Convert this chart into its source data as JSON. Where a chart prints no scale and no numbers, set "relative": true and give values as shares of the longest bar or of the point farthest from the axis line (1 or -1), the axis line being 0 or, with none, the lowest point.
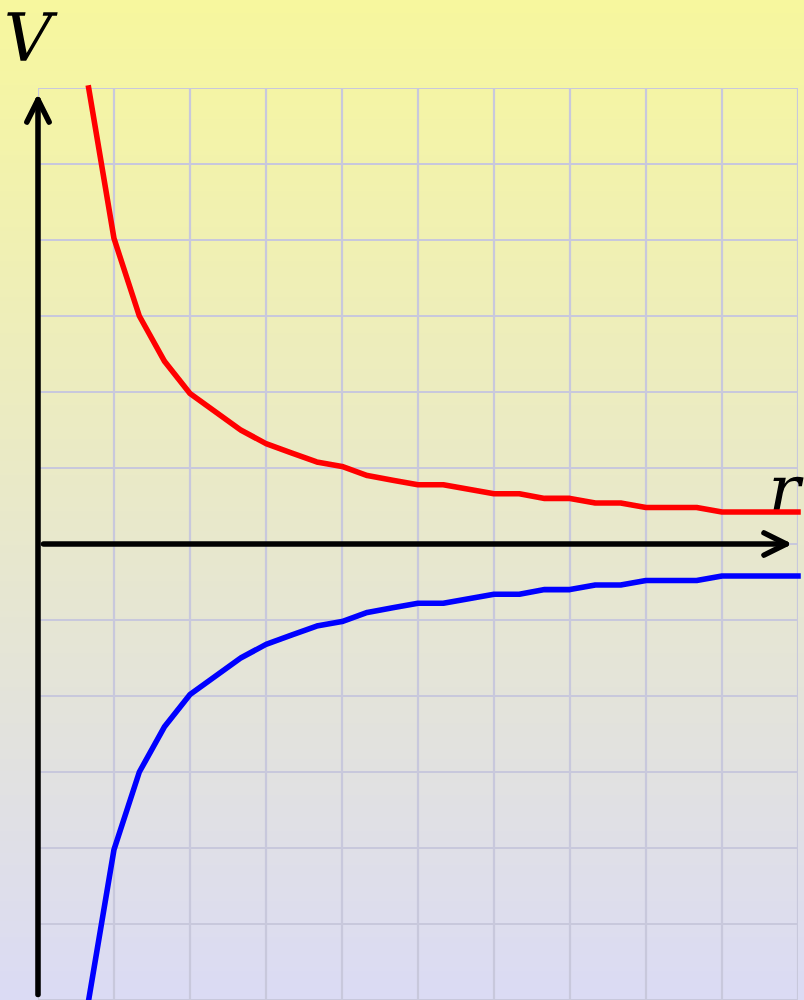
{
  "chart_data": {
    "type": "line",
    "relative": true,
    "xlabel": "r",
    "ylabel": "V",
    "grid": true,
    "categories": [
      null,
      null,
      null,
      null,
      null,
      null,
      null,
      null,
      null,
      null,
      null,
      null,
      null,
      null,
      null,
      null,
      null,
      null,
      null,
      null,
      null,
      null,
      null,
      null,
      null,
      null,
      null,
      null,
      null
    ],
    "series": [
      {
        "color": "#ff0000",
        "values": [
          1.0,
          0.67,
          0.5,
          0.4,
          0.33,
          0.29,
          0.25,
          0.22,
          0.2,
          0.18,
          0.17,
          0.15,
          0.14,
          0.13,
          0.13,
          0.12,
          0.11,
          0.11,
          0.1,
          0.1,
          0.09,
          0.09,
          0.08,
          0.08,
          0.08,
          0.07,
          0.07,
          0.07,
          0.07
        ]
      },
      {
        "color": "#0000ff",
        "values": [
          -1.0,
          -0.67,
          -0.5,
          -0.4,
          -0.33,
          -0.29,
          -0.25,
          -0.22,
          -0.2,
          -0.18,
          -0.17,
          -0.15,
          -0.14,
          -0.13,
          -0.13,
          -0.12,
          -0.11,
          -0.11,
          -0.1,
          -0.1,
          -0.09,
          -0.09,
          -0.08,
          -0.08,
          -0.08,
          -0.07,
          -0.07,
          -0.07,
          -0.07
        ]
      }
    ]
  }
}
